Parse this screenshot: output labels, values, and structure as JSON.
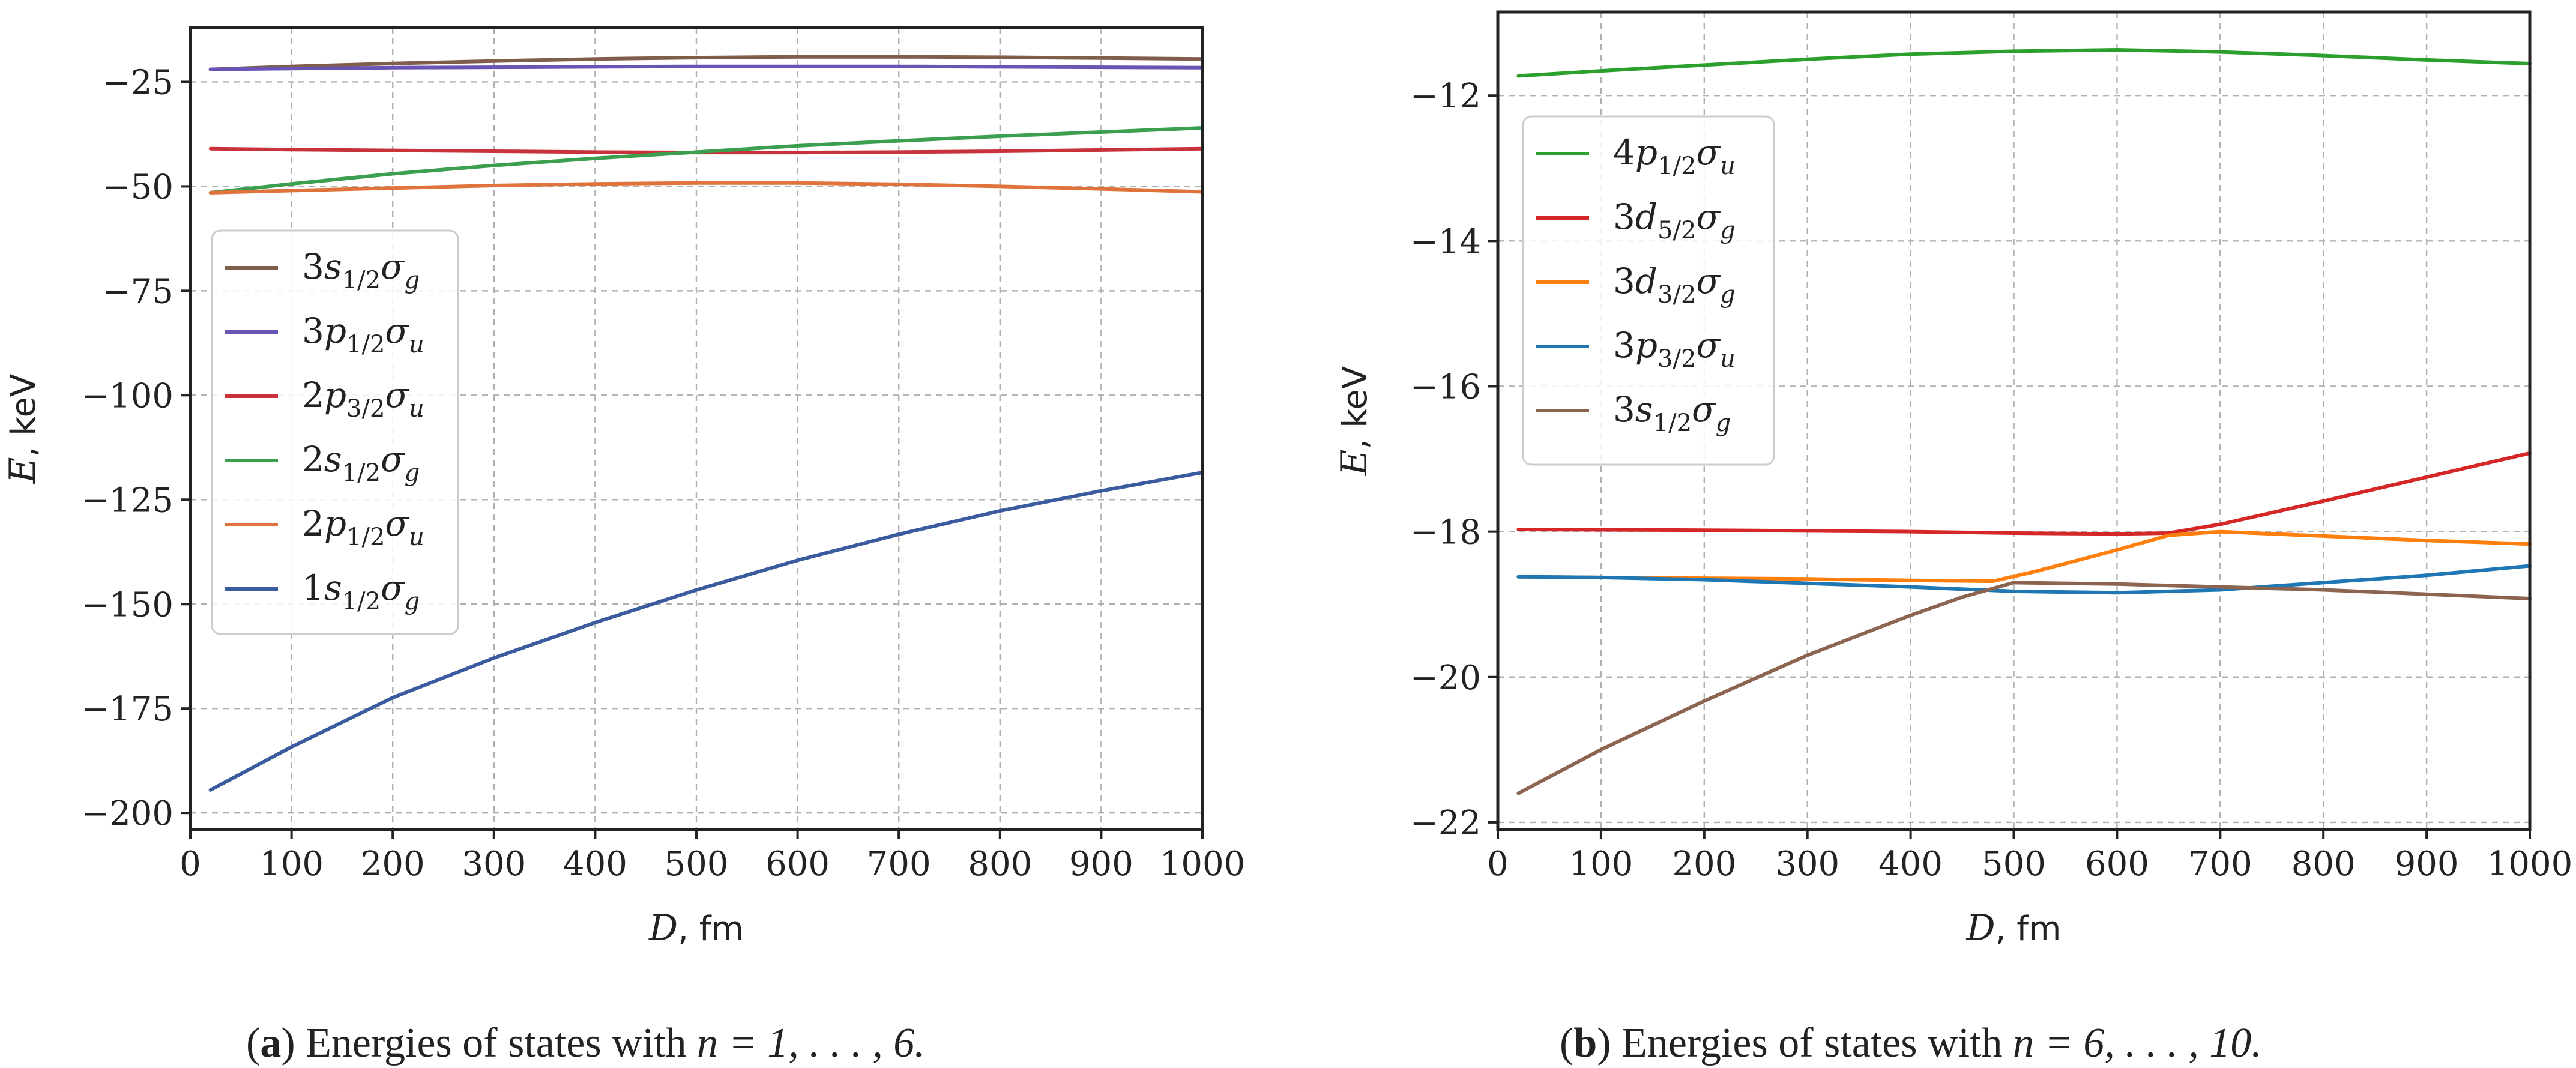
{
  "chart_data": [
    {
      "type": "line",
      "panel": "a",
      "caption_label": "a",
      "caption_text": "Energies of states with ",
      "caption_math": "n = 1, . . . , 6.",
      "xlabel_var": "D",
      "xlabel_unit": "fm",
      "ylabel_var": "E",
      "ylabel_unit": "keV",
      "xlim": [
        0,
        1000
      ],
      "ylim": [
        -204,
        -12
      ],
      "xticks": [
        0,
        100,
        200,
        300,
        400,
        500,
        600,
        700,
        800,
        900,
        1000
      ],
      "yticks": [
        -200,
        -175,
        -150,
        -125,
        -100,
        -75,
        -50,
        -25
      ],
      "ytick_labels": [
        "−200",
        "−175",
        "−150",
        "−125",
        "−100",
        "−75",
        "−50",
        "−25"
      ],
      "grid": true,
      "legend_placement": "center-left",
      "series": [
        {
          "name": "3s_{1/2}σ_g",
          "n": "3",
          "l": "s",
          "j": "1/2",
          "parity": "g",
          "color": "#7f5e4c",
          "x": [
            20,
            100,
            200,
            300,
            400,
            500,
            600,
            700,
            800,
            900,
            1000
          ],
          "y": [
            -22.0,
            -21.3,
            -20.6,
            -20.0,
            -19.5,
            -19.2,
            -19.0,
            -19.0,
            -19.1,
            -19.3,
            -19.5
          ]
        },
        {
          "name": "3p_{1/2}σ_u",
          "n": "3",
          "l": "p",
          "j": "1/2",
          "parity": "u",
          "color": "#6a55b5",
          "x": [
            20,
            100,
            200,
            300,
            400,
            500,
            600,
            700,
            800,
            900,
            1000
          ],
          "y": [
            -22.0,
            -21.8,
            -21.6,
            -21.5,
            -21.4,
            -21.3,
            -21.3,
            -21.3,
            -21.4,
            -21.5,
            -21.6
          ]
        },
        {
          "name": "2p_{3/2}σ_u",
          "n": "2",
          "l": "p",
          "j": "3/2",
          "parity": "u",
          "color": "#c8323a",
          "x": [
            20,
            100,
            200,
            300,
            400,
            500,
            600,
            700,
            800,
            900,
            1000
          ],
          "y": [
            -41.0,
            -41.2,
            -41.4,
            -41.6,
            -41.8,
            -41.9,
            -41.9,
            -41.8,
            -41.6,
            -41.3,
            -41.0
          ]
        },
        {
          "name": "2s_{1/2}σ_g",
          "n": "2",
          "l": "s",
          "j": "1/2",
          "parity": "g",
          "color": "#3c9e4f",
          "x": [
            20,
            100,
            200,
            300,
            400,
            500,
            600,
            700,
            800,
            900,
            1000
          ],
          "y": [
            -51.5,
            -49.4,
            -47.0,
            -45.0,
            -43.3,
            -41.8,
            -40.3,
            -39.1,
            -38.0,
            -37.0,
            -36.0
          ]
        },
        {
          "name": "2p_{1/2}σ_u",
          "n": "2",
          "l": "p",
          "j": "1/2",
          "parity": "u",
          "color": "#e0733c",
          "x": [
            20,
            100,
            200,
            300,
            400,
            500,
            600,
            700,
            800,
            900,
            1000
          ],
          "y": [
            -51.5,
            -51.0,
            -50.4,
            -49.8,
            -49.4,
            -49.2,
            -49.2,
            -49.5,
            -50.0,
            -50.6,
            -51.3
          ]
        },
        {
          "name": "1s_{1/2}σ_g",
          "n": "1",
          "l": "s",
          "j": "1/2",
          "parity": "g",
          "color": "#3a5b9e",
          "x": [
            20,
            100,
            200,
            300,
            400,
            500,
            600,
            700,
            800,
            900,
            1000
          ],
          "y": [
            -194.5,
            -184.2,
            -172.4,
            -162.9,
            -154.4,
            -146.6,
            -139.5,
            -133.3,
            -127.7,
            -122.9,
            -118.5
          ]
        }
      ]
    },
    {
      "type": "line",
      "panel": "b",
      "caption_label": "b",
      "caption_text": "Energies of states with ",
      "caption_math": "n = 6, . . . , 10.",
      "xlabel_var": "D",
      "xlabel_unit": "fm",
      "ylabel_var": "E",
      "ylabel_unit": "keV",
      "xlim": [
        0,
        1000
      ],
      "ylim": [
        -22.1,
        -10.85
      ],
      "xticks": [
        0,
        100,
        200,
        300,
        400,
        500,
        600,
        700,
        800,
        900,
        1000
      ],
      "yticks": [
        -22,
        -20,
        -18,
        -16,
        -14,
        -12
      ],
      "ytick_labels": [
        "−22",
        "−20",
        "−18",
        "−16",
        "−14",
        "−12"
      ],
      "grid": true,
      "legend_placement": "upper-left",
      "series": [
        {
          "name": "4p_{1/2}σ_u",
          "n": "4",
          "l": "p",
          "j": "1/2",
          "parity": "u",
          "color": "#2ca02c",
          "x": [
            20,
            100,
            200,
            300,
            400,
            500,
            600,
            700,
            800,
            900,
            1000
          ],
          "y": [
            -11.73,
            -11.66,
            -11.58,
            -11.5,
            -11.43,
            -11.39,
            -11.37,
            -11.4,
            -11.45,
            -11.51,
            -11.56
          ]
        },
        {
          "name": "3d_{5/2}σ_g",
          "n": "3",
          "l": "d",
          "j": "5/2",
          "parity": "g",
          "color": "#d62728",
          "x": [
            20,
            200,
            400,
            500,
            600,
            650,
            700,
            800,
            900,
            1000
          ],
          "y": [
            -17.97,
            -17.98,
            -18.0,
            -18.02,
            -18.03,
            -18.02,
            -17.9,
            -17.58,
            -17.25,
            -16.92
          ]
        },
        {
          "name": "3d_{3/2}σ_g",
          "n": "3",
          "l": "d",
          "j": "3/2",
          "parity": "g",
          "color": "#ff7f0e",
          "x": [
            20,
            100,
            200,
            300,
            400,
            480,
            520,
            600,
            650,
            700,
            800,
            900,
            1000
          ],
          "y": [
            -18.62,
            -18.63,
            -18.64,
            -18.65,
            -18.67,
            -18.68,
            -18.55,
            -18.25,
            -18.05,
            -18.0,
            -18.06,
            -18.12,
            -18.17
          ]
        },
        {
          "name": "3p_{3/2}σ_u",
          "n": "3",
          "l": "p",
          "j": "3/2",
          "parity": "u",
          "color": "#1f77b4",
          "x": [
            20,
            100,
            200,
            300,
            400,
            500,
            600,
            700,
            800,
            900,
            1000
          ],
          "y": [
            -18.62,
            -18.63,
            -18.66,
            -18.71,
            -18.76,
            -18.82,
            -18.84,
            -18.8,
            -18.7,
            -18.6,
            -18.47
          ]
        },
        {
          "name": "3s_{1/2}σ_g",
          "n": "3",
          "l": "s",
          "j": "1/2",
          "parity": "g",
          "color": "#8c6450",
          "x": [
            20,
            100,
            200,
            300,
            400,
            450,
            500,
            600,
            700,
            800,
            900,
            1000
          ],
          "y": [
            -21.6,
            -21.0,
            -20.33,
            -19.7,
            -19.15,
            -18.9,
            -18.7,
            -18.72,
            -18.76,
            -18.8,
            -18.86,
            -18.92
          ]
        }
      ]
    }
  ]
}
